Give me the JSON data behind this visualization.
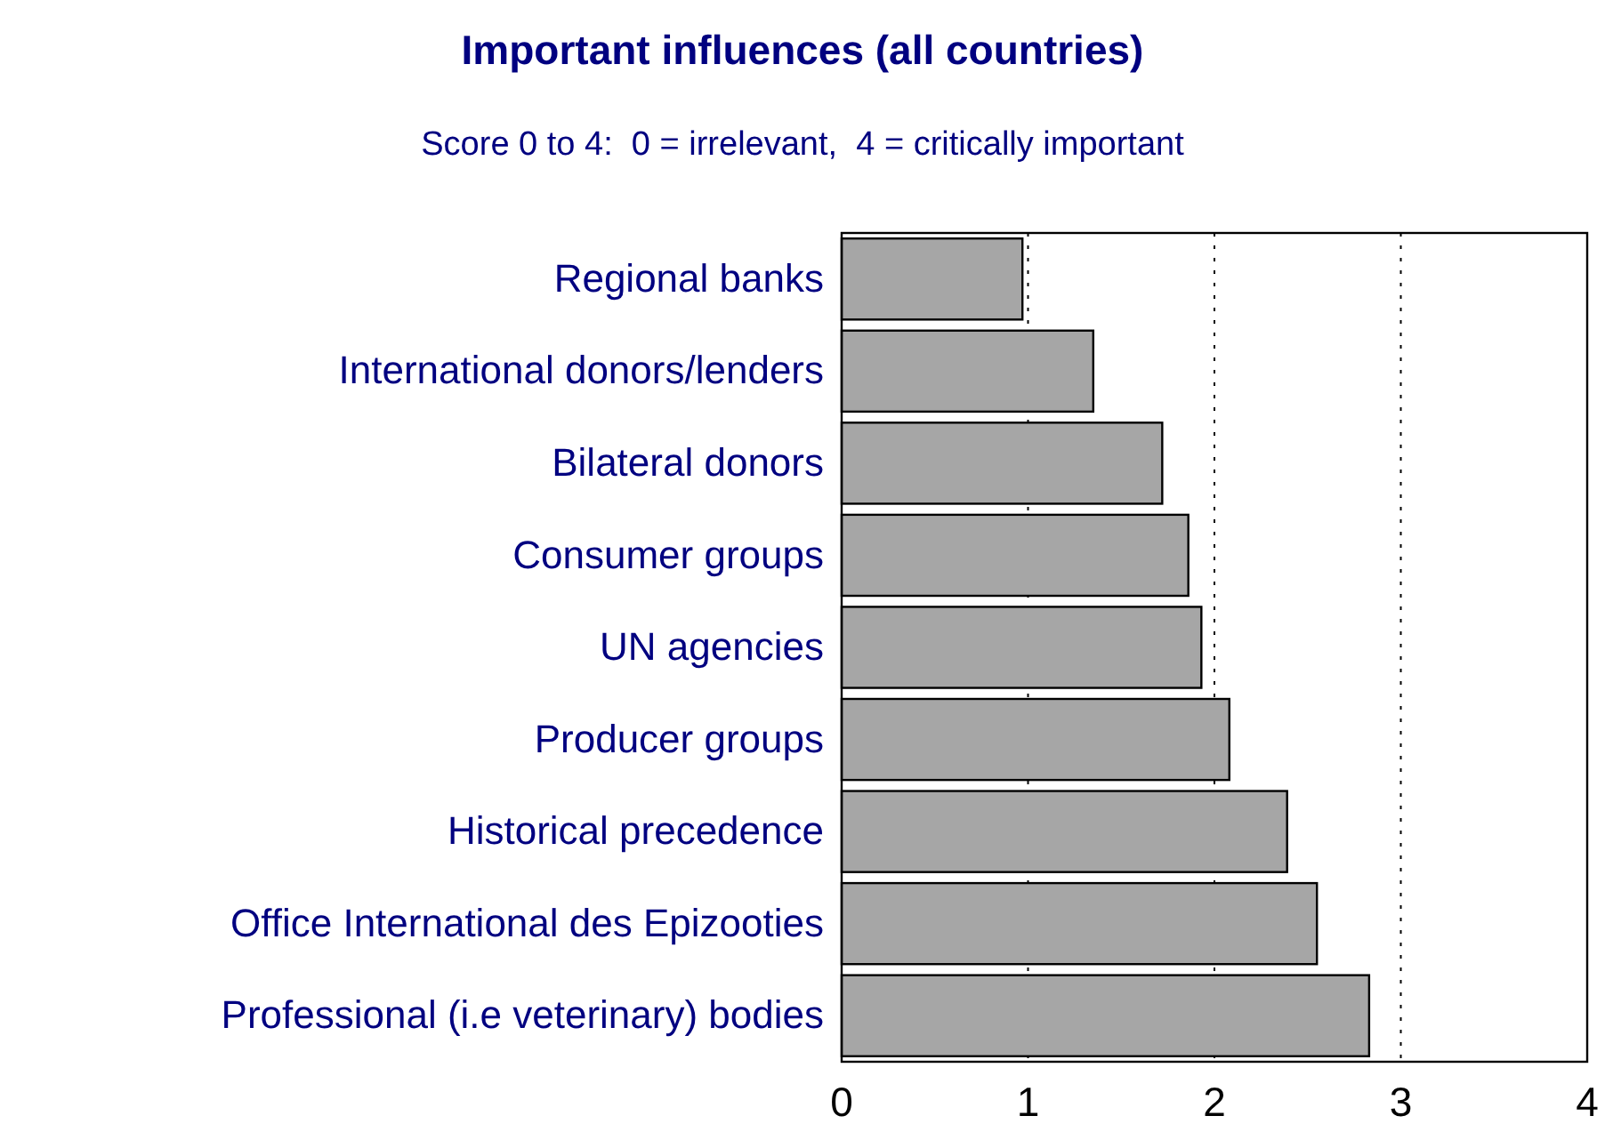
{
  "chart_data": {
    "type": "bar",
    "orientation": "horizontal",
    "title": "Important influences (all countries)",
    "subtitle": "Score 0 to 4:  0 = irrelevant,  4 = critically important",
    "categories": [
      "Regional banks",
      "International donors/lenders",
      "Bilateral donors",
      "Consumer groups",
      "UN agencies",
      "Producer groups",
      "Historical precedence",
      "Office International des Epizooties",
      "Professional (i.e veterinary) bodies"
    ],
    "values": [
      0.97,
      1.35,
      1.72,
      1.86,
      1.93,
      2.08,
      2.39,
      2.55,
      2.83
    ],
    "color": "#a6a6a6",
    "xlim": [
      0,
      4
    ],
    "xticks": [
      0,
      1,
      2,
      3,
      4
    ],
    "grid": "x"
  }
}
